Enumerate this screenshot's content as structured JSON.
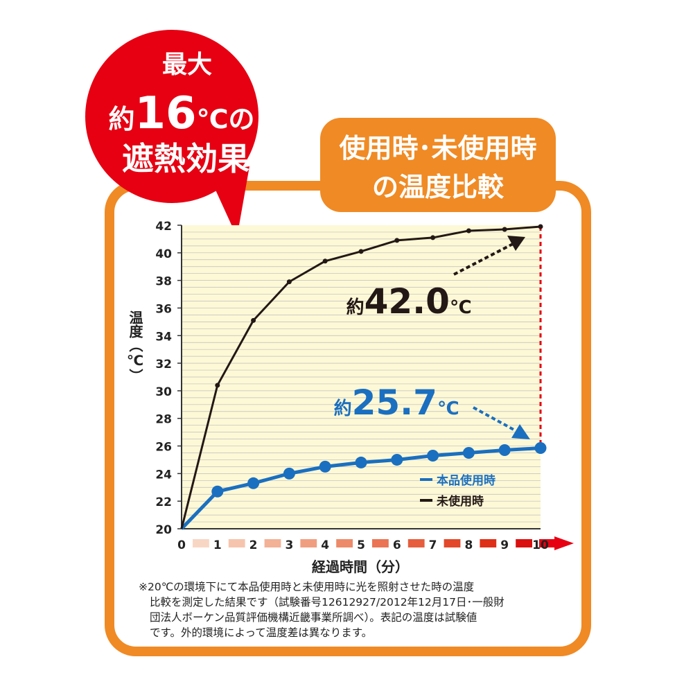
{
  "colors": {
    "frame": "#f08a24",
    "bubble": "#e60012",
    "plot_bg": "#fdf8d6",
    "grid": "#bdbdbd",
    "used": "#1a6fc0",
    "unused": "#231815",
    "red_dash": "#e60012",
    "time_arrow": "#e60012",
    "time_gradient": [
      "#f8d6c4",
      "#f6c4ad",
      "#f3b196",
      "#f09e80",
      "#ed8a69",
      "#ea7453",
      "#e65e3d",
      "#e24829",
      "#de3018",
      "#d9100f"
    ]
  },
  "bubble": {
    "line1": "最大",
    "line2_prefix": "約",
    "line2_value": "16",
    "line2_suffix": "℃の",
    "line3": "遮熱効果"
  },
  "header": {
    "line1": "使用時･未使用時",
    "line2": "の温度比較"
  },
  "callouts": {
    "unused_prefix": "約",
    "unused_value": "42.0",
    "unused_unit": "℃",
    "used_prefix": "約",
    "used_value": "25.7",
    "used_unit": "℃"
  },
  "chart_data": {
    "type": "line",
    "x": [
      0,
      1,
      2,
      3,
      4,
      5,
      6,
      7,
      8,
      9,
      10
    ],
    "x_tick_labels": [
      "0",
      "1",
      "2",
      "3",
      "4",
      "5",
      "6",
      "7",
      "8",
      "9",
      "10"
    ],
    "y_ticks": [
      20,
      22,
      24,
      26,
      28,
      30,
      32,
      34,
      36,
      38,
      40,
      42
    ],
    "xlim": [
      0,
      10
    ],
    "ylim": [
      20,
      42
    ],
    "xlabel": "経過時間（分）",
    "ylabel": "温度（℃）",
    "grid": true,
    "legend_position": "bottom-right",
    "series": [
      {
        "name": "本品使用時",
        "color": "#1a6fc0",
        "values": [
          20.0,
          22.7,
          23.3,
          24.0,
          24.5,
          24.8,
          25.0,
          25.3,
          25.5,
          25.7,
          25.85
        ]
      },
      {
        "name": "未使用時",
        "color": "#231815",
        "values": [
          20.0,
          30.4,
          35.1,
          37.9,
          39.4,
          40.1,
          40.9,
          41.1,
          41.6,
          41.7,
          41.9
        ]
      }
    ]
  },
  "footnote": {
    "line1": "※20℃の環境下にて本品使用時と未使用時に光を照射させた時の温度",
    "line2": "比較を測定した結果です（試験番号12612927/2012年12月17日･一般財",
    "line3": "団法人ボーケン品質評価機構近畿事業所調べ）。表記の温度は試験値",
    "line4": "です。外的環境によって温度差は異なります。"
  }
}
